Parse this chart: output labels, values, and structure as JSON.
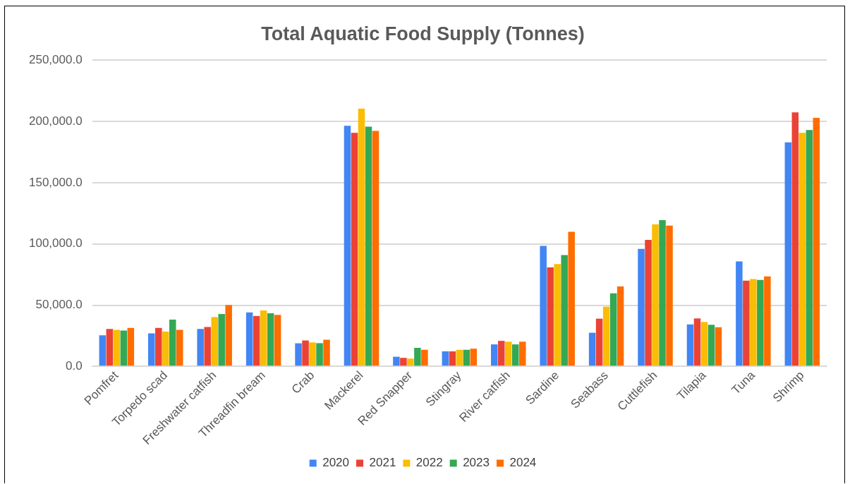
{
  "chart_data": {
    "type": "bar",
    "title": "Total Aquatic Food Supply (Tonnes)",
    "categories": [
      "Pomfret",
      "Torpedo scad",
      "Freshwater catfish",
      "Threadfin bream",
      "Crab",
      "Mackerel",
      "Red Snapper",
      "Stingray",
      "River catfish",
      "Sardine",
      "Seabass",
      "Cuttlefish",
      "Tilapia",
      "Tuna",
      "Shrimp"
    ],
    "series": [
      {
        "name": "2020",
        "color": "#4285f4",
        "values": [
          25400,
          27000,
          30600,
          44100,
          18900,
          196500,
          7900,
          12300,
          18000,
          98400,
          27500,
          96000,
          34300,
          85800,
          183000
        ]
      },
      {
        "name": "2021",
        "color": "#ea4335",
        "values": [
          30600,
          31500,
          32200,
          41200,
          21200,
          190700,
          7000,
          12300,
          20900,
          80800,
          39000,
          103400,
          39200,
          70000,
          207500
        ]
      },
      {
        "name": "2022",
        "color": "#fbbc04",
        "values": [
          29900,
          28400,
          40300,
          45700,
          19600,
          210500,
          6400,
          13600,
          20200,
          83600,
          48800,
          116000,
          36300,
          71300,
          190700
        ]
      },
      {
        "name": "2023",
        "color": "#34a853",
        "values": [
          29300,
          38300,
          42800,
          43400,
          19000,
          195800,
          15200,
          13600,
          18000,
          91000,
          59700,
          119500,
          34000,
          70600,
          193000
        ]
      },
      {
        "name": "2024",
        "color": "#ff6d01",
        "values": [
          31500,
          29900,
          50200,
          42100,
          21800,
          192300,
          13600,
          14500,
          20200,
          110000,
          65300,
          115000,
          32000,
          73500,
          203000
        ]
      }
    ],
    "ylim": [
      0,
      250000
    ],
    "yticks": [
      {
        "value": 0,
        "label": "0.0"
      },
      {
        "value": 50000,
        "label": "50,000.0"
      },
      {
        "value": 100000,
        "label": "100,000.0"
      },
      {
        "value": 150000,
        "label": "150,000.0"
      },
      {
        "value": 200000,
        "label": "200,000.0"
      },
      {
        "value": 250000,
        "label": "250,000.0"
      }
    ],
    "grid": "y",
    "legend": "bottom"
  }
}
